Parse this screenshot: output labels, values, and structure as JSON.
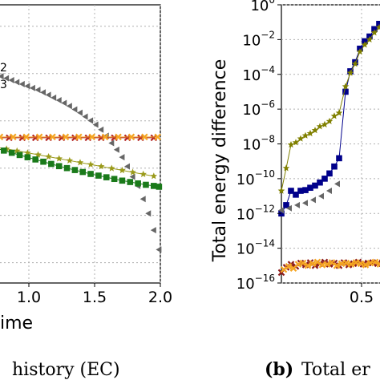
{
  "chart_data": [
    {
      "type": "scatter",
      "xlabel": "ime",
      "xticks": [
        "1.0",
        "1.5",
        "2.0"
      ],
      "xlim": [
        0.75,
        2.0
      ],
      "ylim": [
        0,
        1
      ],
      "legend_fragments": [
        "2",
        "3"
      ],
      "caption": "history (EC)",
      "grid": true,
      "series": [
        {
          "color": "#666666",
          "marker": "triangle-left",
          "points": [
            [
              0.75,
              0.24
            ],
            [
              0.79,
              0.257
            ],
            [
              0.83,
              0.264
            ],
            [
              0.87,
              0.271
            ],
            [
              0.91,
              0.278
            ],
            [
              0.95,
              0.285
            ],
            [
              0.99,
              0.292
            ],
            [
              1.03,
              0.299
            ],
            [
              1.07,
              0.306
            ],
            [
              1.11,
              0.315
            ],
            [
              1.15,
              0.324
            ],
            [
              1.19,
              0.334
            ],
            [
              1.23,
              0.343
            ],
            [
              1.27,
              0.353
            ],
            [
              1.31,
              0.364
            ],
            [
              1.35,
              0.376
            ],
            [
              1.39,
              0.388
            ],
            [
              1.43,
              0.402
            ],
            [
              1.47,
              0.416
            ],
            [
              1.51,
              0.431
            ],
            [
              1.55,
              0.449
            ],
            [
              1.59,
              0.471
            ],
            [
              1.63,
              0.497
            ],
            [
              1.67,
              0.521
            ],
            [
              1.71,
              0.548
            ],
            [
              1.75,
              0.581
            ],
            [
              1.79,
              0.618
            ],
            [
              1.83,
              0.651
            ],
            [
              1.87,
              0.698
            ],
            [
              1.91,
              0.75
            ],
            [
              1.95,
              0.81
            ],
            [
              1.99,
              0.88
            ]
          ]
        },
        {
          "color": "#b22222",
          "marker": "x",
          "points": [
            [
              0.75,
              0.478
            ],
            [
              0.85,
              0.478
            ],
            [
              0.95,
              0.478
            ],
            [
              1.05,
              0.478
            ],
            [
              1.15,
              0.478
            ],
            [
              1.25,
              0.478
            ],
            [
              1.35,
              0.478
            ],
            [
              1.45,
              0.478
            ],
            [
              1.55,
              0.478
            ],
            [
              1.65,
              0.478
            ],
            [
              1.75,
              0.478
            ],
            [
              1.85,
              0.478
            ],
            [
              1.95,
              0.478
            ]
          ]
        },
        {
          "color": "#f5a623",
          "marker": "x",
          "points": [
            [
              0.78,
              0.475
            ],
            [
              0.88,
              0.475
            ],
            [
              0.98,
              0.475
            ],
            [
              1.08,
              0.475
            ],
            [
              1.18,
              0.475
            ],
            [
              1.28,
              0.475
            ],
            [
              1.38,
              0.475
            ],
            [
              1.48,
              0.475
            ],
            [
              1.58,
              0.475
            ],
            [
              1.68,
              0.475
            ],
            [
              1.78,
              0.475
            ],
            [
              1.88,
              0.475
            ],
            [
              1.98,
              0.475
            ]
          ]
        },
        {
          "color": "#9a9a1a",
          "marker": "star",
          "points": [
            [
              0.75,
              0.512
            ],
            [
              0.83,
              0.518
            ],
            [
              0.91,
              0.525
            ],
            [
              0.99,
              0.532
            ],
            [
              1.07,
              0.539
            ],
            [
              1.15,
              0.546
            ],
            [
              1.23,
              0.553
            ],
            [
              1.31,
              0.56
            ],
            [
              1.39,
              0.567
            ],
            [
              1.47,
              0.574
            ],
            [
              1.55,
              0.581
            ],
            [
              1.63,
              0.588
            ],
            [
              1.71,
              0.595
            ],
            [
              1.79,
              0.602
            ],
            [
              1.87,
              0.609
            ],
            [
              1.95,
              0.616
            ]
          ]
        },
        {
          "color": "#1a7a1a",
          "marker": "square",
          "points": [
            [
              0.75,
              0.515
            ],
            [
              0.81,
              0.524
            ],
            [
              0.87,
              0.532
            ],
            [
              0.93,
              0.54
            ],
            [
              0.99,
              0.548
            ],
            [
              1.05,
              0.556
            ],
            [
              1.11,
              0.564
            ],
            [
              1.17,
              0.572
            ],
            [
              1.23,
              0.58
            ],
            [
              1.29,
              0.587
            ],
            [
              1.35,
              0.594
            ],
            [
              1.41,
              0.601
            ],
            [
              1.47,
              0.608
            ],
            [
              1.53,
              0.614
            ],
            [
              1.59,
              0.62
            ],
            [
              1.65,
              0.626
            ],
            [
              1.71,
              0.632
            ],
            [
              1.77,
              0.637
            ],
            [
              1.83,
              0.642
            ],
            [
              1.89,
              0.647
            ],
            [
              1.95,
              0.651
            ],
            [
              1.99,
              0.654
            ]
          ]
        }
      ]
    },
    {
      "type": "line",
      "ylabel": "Total energy difference",
      "yscale": "log",
      "ylim": [
        1e-16,
        1
      ],
      "yticks": [
        "10",
        "10",
        "10",
        "10",
        "10",
        "10",
        "10",
        "10",
        "10"
      ],
      "ytick_exponents": [
        "0",
        "−2",
        "−4",
        "−6",
        "−8",
        "−10",
        "−12",
        "−14",
        "−16"
      ],
      "xticks": [
        "0.5"
      ],
      "xlim": [
        0.0,
        0.65
      ],
      "caption_bold": "(b)",
      "caption": "Total er",
      "grid": true,
      "series": [
        {
          "color": "#00008b",
          "marker": "square",
          "x": [
            0.0,
            0.03,
            0.06,
            0.09,
            0.12,
            0.15,
            0.18,
            0.21,
            0.24,
            0.27,
            0.3,
            0.33,
            0.36,
            0.4,
            0.43,
            0.46,
            0.49,
            0.52,
            0.55,
            0.58,
            0.61,
            0.64
          ],
          "y": [
            1e-12,
            3e-12,
            2e-11,
            1.2e-11,
            2e-11,
            2.2e-11,
            3e-11,
            4e-11,
            6e-11,
            1e-10,
            2e-10,
            5e-10,
            1.5e-09,
            1e-05,
            0.00015,
            0.0005,
            0.003,
            0.008,
            0.015,
            0.04,
            0.08,
            0.1
          ]
        },
        {
          "color": "#808000",
          "marker": "star",
          "x": [
            0.0,
            0.03,
            0.06,
            0.09,
            0.12,
            0.15,
            0.18,
            0.21,
            0.24,
            0.27,
            0.3,
            0.33,
            0.36,
            0.4,
            0.43,
            0.46,
            0.49,
            0.52,
            0.55,
            0.58,
            0.61,
            0.64
          ],
          "y": [
            2e-11,
            4e-10,
            9e-09,
            1.2e-08,
            2e-08,
            3e-08,
            4e-08,
            6e-08,
            1e-07,
            1.3e-07,
            2e-07,
            4e-07,
            6e-07,
            2e-05,
            0.00012,
            0.0004,
            0.002,
            0.005,
            0.01,
            0.025,
            0.05,
            0.08
          ]
        },
        {
          "color": "#666666",
          "marker": "triangle-left",
          "x": [
            0.0,
            0.05,
            0.1,
            0.15,
            0.2,
            0.25,
            0.3,
            0.35
          ],
          "y": [
            1.5e-12,
            2e-12,
            3e-12,
            4e-12,
            6e-12,
            1e-11,
            2e-11,
            5e-11
          ]
        },
        {
          "color": "#8b1a1a",
          "marker": "x",
          "x": [
            0.0,
            0.03,
            0.06,
            0.09,
            0.12,
            0.15,
            0.18,
            0.21,
            0.24,
            0.27,
            0.3,
            0.33,
            0.36,
            0.39,
            0.42,
            0.45,
            0.48,
            0.51,
            0.54,
            0.57,
            0.6,
            0.63
          ],
          "y": [
            4e-16,
            8e-16,
            1.2e-15,
            9e-16,
            1.4e-15,
            1.1e-15,
            1.5e-15,
            1e-15,
            1.3e-15,
            1.6e-15,
            1.2e-15,
            1.4e-15,
            1e-15,
            1.5e-15,
            1.1e-15,
            1.3e-15,
            1.6e-15,
            1.2e-15,
            1.4e-15,
            1.5e-15,
            1.3e-15,
            1.5e-15
          ]
        },
        {
          "color": "#f5a623",
          "marker": "x",
          "x": [
            0.015,
            0.045,
            0.075,
            0.105,
            0.135,
            0.165,
            0.195,
            0.225,
            0.255,
            0.285,
            0.315,
            0.345,
            0.375,
            0.405,
            0.435,
            0.465,
            0.495,
            0.525,
            0.555,
            0.585,
            0.615
          ],
          "y": [
            6e-16,
            9e-16,
            7e-16,
            1.2e-15,
            1.4e-15,
            1e-15,
            1.3e-15,
            1.6e-15,
            1.1e-15,
            1.2e-15,
            1.5e-15,
            1e-15,
            1.3e-15,
            1.4e-15,
            1.2e-15,
            1.5e-15,
            1.3e-15,
            1.1e-15,
            1.4e-15,
            1.6e-15,
            1.2e-15
          ]
        }
      ]
    }
  ]
}
